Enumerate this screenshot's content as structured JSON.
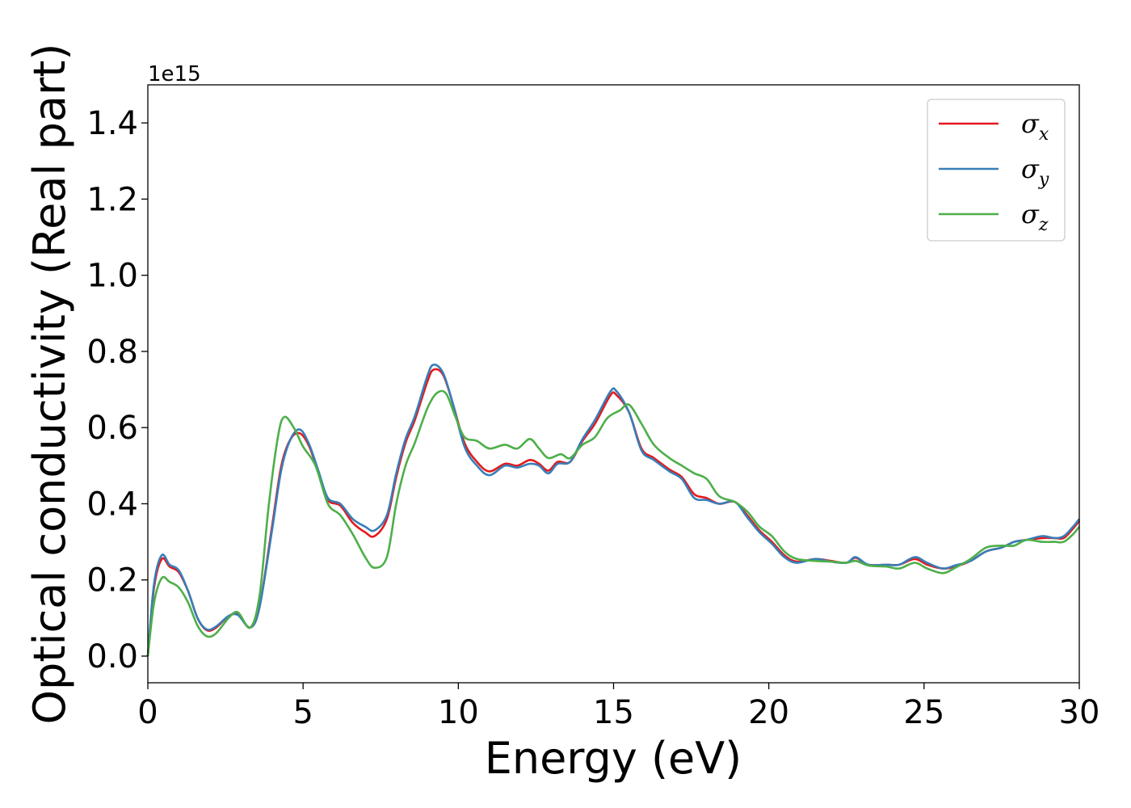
{
  "chart_data": {
    "type": "line",
    "xlabel": "Energy (eV)",
    "ylabel": "Optical conductivity (Real part)",
    "y_offset_text": "1e15",
    "xlim": [
      0,
      30
    ],
    "ylim": [
      -0.07,
      1.5
    ],
    "x_ticks": [
      0,
      5,
      10,
      15,
      20,
      25,
      30
    ],
    "x_tick_labels": [
      "0",
      "5",
      "10",
      "15",
      "20",
      "25",
      "30"
    ],
    "y_ticks": [
      0.0,
      0.2,
      0.4,
      0.6,
      0.8,
      1.0,
      1.2,
      1.4
    ],
    "y_tick_labels": [
      "0.0",
      "0.2",
      "0.4",
      "0.6",
      "0.8",
      "1.0",
      "1.2",
      "1.4"
    ],
    "grid": false,
    "legend_position": "top-right",
    "series": [
      {
        "name": "σx",
        "symbol": "σ",
        "subscript": "x",
        "color": "#e41a1c",
        "points": [
          [
            0,
            0.0
          ],
          [
            0.2,
            0.18
          ],
          [
            0.45,
            0.255
          ],
          [
            0.7,
            0.235
          ],
          [
            1.0,
            0.22
          ],
          [
            1.3,
            0.17
          ],
          [
            1.6,
            0.1
          ],
          [
            1.9,
            0.068
          ],
          [
            2.2,
            0.075
          ],
          [
            2.6,
            0.105
          ],
          [
            2.9,
            0.11
          ],
          [
            3.3,
            0.075
          ],
          [
            3.6,
            0.13
          ],
          [
            4.0,
            0.34
          ],
          [
            4.3,
            0.5
          ],
          [
            4.6,
            0.57
          ],
          [
            4.9,
            0.585
          ],
          [
            5.2,
            0.55
          ],
          [
            5.5,
            0.48
          ],
          [
            5.8,
            0.41
          ],
          [
            6.2,
            0.395
          ],
          [
            6.6,
            0.35
          ],
          [
            7.0,
            0.325
          ],
          [
            7.3,
            0.315
          ],
          [
            7.7,
            0.36
          ],
          [
            8.0,
            0.47
          ],
          [
            8.3,
            0.56
          ],
          [
            8.6,
            0.62
          ],
          [
            9.0,
            0.72
          ],
          [
            9.2,
            0.752
          ],
          [
            9.5,
            0.74
          ],
          [
            9.8,
            0.67
          ],
          [
            10.2,
            0.56
          ],
          [
            10.6,
            0.51
          ],
          [
            11.0,
            0.485
          ],
          [
            11.5,
            0.505
          ],
          [
            11.9,
            0.5
          ],
          [
            12.3,
            0.515
          ],
          [
            12.6,
            0.505
          ],
          [
            12.9,
            0.487
          ],
          [
            13.2,
            0.51
          ],
          [
            13.6,
            0.51
          ],
          [
            14.0,
            0.565
          ],
          [
            14.4,
            0.61
          ],
          [
            14.9,
            0.685
          ],
          [
            15.1,
            0.685
          ],
          [
            15.5,
            0.64
          ],
          [
            15.9,
            0.545
          ],
          [
            16.3,
            0.52
          ],
          [
            16.8,
            0.49
          ],
          [
            17.2,
            0.47
          ],
          [
            17.6,
            0.425
          ],
          [
            18.0,
            0.415
          ],
          [
            18.4,
            0.4
          ],
          [
            18.9,
            0.405
          ],
          [
            19.3,
            0.37
          ],
          [
            19.7,
            0.33
          ],
          [
            20.1,
            0.3
          ],
          [
            20.5,
            0.265
          ],
          [
            20.9,
            0.248
          ],
          [
            21.5,
            0.255
          ],
          [
            22.0,
            0.25
          ],
          [
            22.5,
            0.245
          ],
          [
            22.8,
            0.258
          ],
          [
            23.2,
            0.24
          ],
          [
            23.8,
            0.24
          ],
          [
            24.2,
            0.24
          ],
          [
            24.7,
            0.255
          ],
          [
            25.1,
            0.24
          ],
          [
            25.6,
            0.23
          ],
          [
            26.0,
            0.235
          ],
          [
            26.5,
            0.25
          ],
          [
            27.0,
            0.275
          ],
          [
            27.5,
            0.285
          ],
          [
            27.9,
            0.3
          ],
          [
            28.3,
            0.305
          ],
          [
            28.8,
            0.31
          ],
          [
            29.2,
            0.31
          ],
          [
            29.5,
            0.31
          ],
          [
            29.8,
            0.335
          ],
          [
            30.0,
            0.355
          ]
        ]
      },
      {
        "name": "σy",
        "symbol": "σ",
        "subscript": "y",
        "color": "#377eb8",
        "points": [
          [
            0,
            0.0
          ],
          [
            0.2,
            0.19
          ],
          [
            0.45,
            0.265
          ],
          [
            0.7,
            0.24
          ],
          [
            1.0,
            0.225
          ],
          [
            1.3,
            0.17
          ],
          [
            1.6,
            0.1
          ],
          [
            1.9,
            0.07
          ],
          [
            2.2,
            0.078
          ],
          [
            2.6,
            0.105
          ],
          [
            2.9,
            0.108
          ],
          [
            3.3,
            0.075
          ],
          [
            3.6,
            0.13
          ],
          [
            4.0,
            0.33
          ],
          [
            4.3,
            0.49
          ],
          [
            4.6,
            0.57
          ],
          [
            4.9,
            0.595
          ],
          [
            5.2,
            0.555
          ],
          [
            5.5,
            0.485
          ],
          [
            5.8,
            0.415
          ],
          [
            6.2,
            0.4
          ],
          [
            6.6,
            0.36
          ],
          [
            7.0,
            0.34
          ],
          [
            7.3,
            0.33
          ],
          [
            7.7,
            0.37
          ],
          [
            8.0,
            0.48
          ],
          [
            8.3,
            0.57
          ],
          [
            8.6,
            0.63
          ],
          [
            9.0,
            0.735
          ],
          [
            9.2,
            0.765
          ],
          [
            9.5,
            0.745
          ],
          [
            9.8,
            0.67
          ],
          [
            10.2,
            0.55
          ],
          [
            10.6,
            0.5
          ],
          [
            11.0,
            0.475
          ],
          [
            11.5,
            0.5
          ],
          [
            11.9,
            0.495
          ],
          [
            12.3,
            0.505
          ],
          [
            12.6,
            0.5
          ],
          [
            12.9,
            0.48
          ],
          [
            13.2,
            0.505
          ],
          [
            13.6,
            0.51
          ],
          [
            14.0,
            0.57
          ],
          [
            14.4,
            0.62
          ],
          [
            14.9,
            0.695
          ],
          [
            15.1,
            0.695
          ],
          [
            15.5,
            0.64
          ],
          [
            15.9,
            0.54
          ],
          [
            16.3,
            0.515
          ],
          [
            16.8,
            0.485
          ],
          [
            17.2,
            0.465
          ],
          [
            17.6,
            0.415
          ],
          [
            18.0,
            0.41
          ],
          [
            18.4,
            0.4
          ],
          [
            18.9,
            0.405
          ],
          [
            19.3,
            0.365
          ],
          [
            19.7,
            0.325
          ],
          [
            20.1,
            0.295
          ],
          [
            20.5,
            0.26
          ],
          [
            20.9,
            0.245
          ],
          [
            21.5,
            0.255
          ],
          [
            22.0,
            0.248
          ],
          [
            22.5,
            0.245
          ],
          [
            22.8,
            0.26
          ],
          [
            23.2,
            0.24
          ],
          [
            23.8,
            0.24
          ],
          [
            24.2,
            0.24
          ],
          [
            24.7,
            0.26
          ],
          [
            25.1,
            0.245
          ],
          [
            25.6,
            0.23
          ],
          [
            26.0,
            0.238
          ],
          [
            26.5,
            0.25
          ],
          [
            27.0,
            0.275
          ],
          [
            27.5,
            0.285
          ],
          [
            27.9,
            0.3
          ],
          [
            28.3,
            0.305
          ],
          [
            28.8,
            0.315
          ],
          [
            29.2,
            0.31
          ],
          [
            29.5,
            0.315
          ],
          [
            29.8,
            0.34
          ],
          [
            30.0,
            0.36
          ]
        ]
      },
      {
        "name": "σz",
        "symbol": "σ",
        "subscript": "z",
        "color": "#4daf4a",
        "points": [
          [
            0,
            0.0
          ],
          [
            0.2,
            0.14
          ],
          [
            0.45,
            0.205
          ],
          [
            0.7,
            0.195
          ],
          [
            1.0,
            0.18
          ],
          [
            1.3,
            0.14
          ],
          [
            1.6,
            0.08
          ],
          [
            1.9,
            0.052
          ],
          [
            2.2,
            0.06
          ],
          [
            2.6,
            0.1
          ],
          [
            2.9,
            0.115
          ],
          [
            3.3,
            0.075
          ],
          [
            3.6,
            0.16
          ],
          [
            3.9,
            0.4
          ],
          [
            4.2,
            0.58
          ],
          [
            4.4,
            0.628
          ],
          [
            4.7,
            0.6
          ],
          [
            5.0,
            0.55
          ],
          [
            5.4,
            0.5
          ],
          [
            5.8,
            0.4
          ],
          [
            6.2,
            0.37
          ],
          [
            6.6,
            0.32
          ],
          [
            7.0,
            0.26
          ],
          [
            7.3,
            0.232
          ],
          [
            7.7,
            0.26
          ],
          [
            8.0,
            0.4
          ],
          [
            8.3,
            0.5
          ],
          [
            8.6,
            0.56
          ],
          [
            9.0,
            0.65
          ],
          [
            9.3,
            0.69
          ],
          [
            9.6,
            0.69
          ],
          [
            9.9,
            0.63
          ],
          [
            10.2,
            0.575
          ],
          [
            10.6,
            0.565
          ],
          [
            11.0,
            0.545
          ],
          [
            11.5,
            0.555
          ],
          [
            11.9,
            0.545
          ],
          [
            12.3,
            0.57
          ],
          [
            12.6,
            0.545
          ],
          [
            12.9,
            0.52
          ],
          [
            13.3,
            0.53
          ],
          [
            13.6,
            0.52
          ],
          [
            14.0,
            0.555
          ],
          [
            14.4,
            0.575
          ],
          [
            14.8,
            0.625
          ],
          [
            15.2,
            0.645
          ],
          [
            15.5,
            0.66
          ],
          [
            15.9,
            0.61
          ],
          [
            16.3,
            0.555
          ],
          [
            16.8,
            0.52
          ],
          [
            17.2,
            0.5
          ],
          [
            17.6,
            0.48
          ],
          [
            18.0,
            0.465
          ],
          [
            18.4,
            0.42
          ],
          [
            18.9,
            0.405
          ],
          [
            19.3,
            0.38
          ],
          [
            19.7,
            0.34
          ],
          [
            20.1,
            0.315
          ],
          [
            20.5,
            0.275
          ],
          [
            20.9,
            0.255
          ],
          [
            21.5,
            0.25
          ],
          [
            22.0,
            0.248
          ],
          [
            22.5,
            0.245
          ],
          [
            22.8,
            0.25
          ],
          [
            23.2,
            0.238
          ],
          [
            23.8,
            0.235
          ],
          [
            24.2,
            0.23
          ],
          [
            24.7,
            0.245
          ],
          [
            25.1,
            0.23
          ],
          [
            25.6,
            0.218
          ],
          [
            26.0,
            0.232
          ],
          [
            26.5,
            0.255
          ],
          [
            27.0,
            0.285
          ],
          [
            27.5,
            0.29
          ],
          [
            27.9,
            0.29
          ],
          [
            28.3,
            0.305
          ],
          [
            28.8,
            0.3
          ],
          [
            29.2,
            0.3
          ],
          [
            29.5,
            0.3
          ],
          [
            29.8,
            0.32
          ],
          [
            30.0,
            0.34
          ]
        ]
      }
    ]
  }
}
